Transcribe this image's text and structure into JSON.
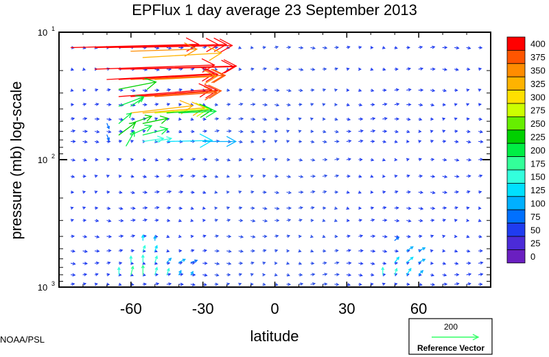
{
  "chart_data": {
    "type": "vector_field",
    "title": "EPFlux  1 day average  23 September 2013",
    "xlabel": "latitude",
    "ylabel": "pressure (mb)  log-scale",
    "xlim": [
      -90,
      90
    ],
    "ylim": [
      1000,
      10
    ],
    "yscale": "log",
    "x_ticks": [
      -60,
      -30,
      0,
      30,
      60
    ],
    "x_tick_labels": [
      "-60",
      "-30",
      "0",
      "30",
      "60"
    ],
    "y_ticks": [
      10,
      100,
      1000
    ],
    "y_tick_labels": [
      {
        "base": "10",
        "exp": "1"
      },
      {
        "base": "10",
        "exp": "2"
      },
      {
        "base": "10",
        "exp": "3"
      }
    ],
    "colorbar": {
      "levels": [
        "400",
        "375",
        "350",
        "325",
        "300",
        "275",
        "250",
        "225",
        "200",
        "175",
        "150",
        "125",
        "100",
        "75",
        "50",
        "25",
        "0"
      ],
      "colors": [
        "#ff0000",
        "#ff5500",
        "#ff8c00",
        "#ffb300",
        "#ffe000",
        "#ccff00",
        "#66ee00",
        "#00d000",
        "#00ee44",
        "#33ff99",
        "#33ffdd",
        "#00e0ff",
        "#00b0ff",
        "#0070ff",
        "#1f3cf0",
        "#4b2bd8",
        "#6a1fc0"
      ]
    },
    "reference_vector": {
      "magnitude": "200",
      "label": "Reference Vector"
    },
    "credit": "NOAA/PSL",
    "strong_vectors_note": "magnitudes 0-400",
    "strong_vectors": [
      {
        "lat": -85,
        "p": 13.2,
        "u": 62,
        "v": 1.6,
        "m": 420
      },
      {
        "lat": -75,
        "p": 13.2,
        "u": 60,
        "v": 1.4,
        "m": 410
      },
      {
        "lat": -70,
        "p": 13.2,
        "u": 58,
        "v": 1.5,
        "m": 405
      },
      {
        "lat": -65,
        "p": 13.2,
        "u": 55,
        "v": 1.0,
        "m": 400
      },
      {
        "lat": -60,
        "p": 14.1,
        "u": 32,
        "v": 1.0,
        "m": 350
      },
      {
        "lat": -75,
        "p": 19.5,
        "u": 58,
        "v": 2.0,
        "m": 410
      },
      {
        "lat": -65,
        "p": 19.5,
        "u": 57,
        "v": 1.5,
        "m": 410
      },
      {
        "lat": -60,
        "p": 19.5,
        "u": 50,
        "v": 1.2,
        "m": 400
      },
      {
        "lat": -55,
        "p": 15.8,
        "u": 38,
        "v": 2.2,
        "m": 330
      },
      {
        "lat": -70,
        "p": 23.5,
        "u": 52,
        "v": 2.8,
        "m": 405
      },
      {
        "lat": -65,
        "p": 23.5,
        "u": 48,
        "v": 2.5,
        "m": 400
      },
      {
        "lat": -60,
        "p": 23.5,
        "u": 45,
        "v": 2.0,
        "m": 395
      },
      {
        "lat": -55,
        "p": 23.5,
        "u": 40,
        "v": 2.0,
        "m": 380
      },
      {
        "lat": -50,
        "p": 23.5,
        "u": 30,
        "v": 1.5,
        "m": 360
      },
      {
        "lat": -65,
        "p": 28.0,
        "u": 18,
        "v": 3.5,
        "m": 230
      },
      {
        "lat": -65,
        "p": 32.0,
        "u": 45,
        "v": 3.5,
        "m": 405
      },
      {
        "lat": -60,
        "p": 32.0,
        "u": 42,
        "v": 3.0,
        "m": 400
      },
      {
        "lat": -55,
        "p": 32.0,
        "u": 38,
        "v": 2.8,
        "m": 395
      },
      {
        "lat": -50,
        "p": 32.0,
        "u": 30,
        "v": 2.0,
        "m": 380
      },
      {
        "lat": -65,
        "p": 38.0,
        "u": 12,
        "v": 4.5,
        "m": 220
      },
      {
        "lat": -60,
        "p": 38.0,
        "u": 6,
        "v": 4.0,
        "m": 220
      },
      {
        "lat": -60,
        "p": 43.0,
        "u": 30,
        "v": 3.5,
        "m": 340
      },
      {
        "lat": -55,
        "p": 43.0,
        "u": 30,
        "v": 2.5,
        "m": 330
      },
      {
        "lat": -50,
        "p": 43.0,
        "u": 26,
        "v": 2.0,
        "m": 290
      },
      {
        "lat": -45,
        "p": 43.0,
        "u": 22,
        "v": 1.5,
        "m": 230
      },
      {
        "lat": -40,
        "p": 43.0,
        "u": 18,
        "v": 0.8,
        "m": 200
      },
      {
        "lat": -65,
        "p": 52.0,
        "u": 6,
        "v": 5.0,
        "m": 210
      },
      {
        "lat": -60,
        "p": 52.0,
        "u": 10,
        "v": 3.5,
        "m": 230
      },
      {
        "lat": -55,
        "p": 52.0,
        "u": 12,
        "v": 2.5,
        "m": 230
      },
      {
        "lat": -65,
        "p": 64.0,
        "u": 8,
        "v": 6.0,
        "m": 230
      },
      {
        "lat": -60,
        "p": 64.0,
        "u": 10,
        "v": 4.5,
        "m": 215
      },
      {
        "lat": -55,
        "p": 64.0,
        "u": 12,
        "v": 3.0,
        "m": 210
      },
      {
        "lat": -55,
        "p": 72.0,
        "u": 10,
        "v": 1.5,
        "m": 160
      },
      {
        "lat": -50,
        "p": 72.0,
        "u": 8,
        "v": 1.5,
        "m": 150
      },
      {
        "lat": -45,
        "p": 72.0,
        "u": 22,
        "v": 0.5,
        "m": 130
      },
      {
        "lat": -30,
        "p": 72.0,
        "u": 16,
        "v": 0.0,
        "m": 110
      },
      {
        "lat": -62,
        "p": 78.0,
        "u": 4,
        "v": 7.0,
        "m": 200
      },
      {
        "lat": -70,
        "p": 52.0,
        "u": 1,
        "v": -2.5,
        "m": 90
      },
      {
        "lat": -70,
        "p": 64.0,
        "u": 1,
        "v": -2.5,
        "m": 90
      }
    ],
    "lower_vectors": [
      {
        "lat": -65,
        "p": 800,
        "u": 0,
        "v": 3.5,
        "m": 170
      },
      {
        "lat": -60,
        "p": 800,
        "u": 1,
        "v": 4.0,
        "m": 180
      },
      {
        "lat": -55,
        "p": 800,
        "u": 0,
        "v": 4.5,
        "m": 180
      },
      {
        "lat": -50,
        "p": 800,
        "u": 1,
        "v": 3.5,
        "m": 160
      },
      {
        "lat": -45,
        "p": 800,
        "u": 1,
        "v": 3.0,
        "m": 150
      },
      {
        "lat": -40,
        "p": 800,
        "u": 1,
        "v": 2.0,
        "m": 120
      },
      {
        "lat": -35,
        "p": 800,
        "u": 1,
        "v": 1.5,
        "m": 100
      },
      {
        "lat": -60,
        "p": 640,
        "u": 0,
        "v": 3.0,
        "m": 160
      },
      {
        "lat": -55,
        "p": 640,
        "u": 0,
        "v": 3.5,
        "m": 170
      },
      {
        "lat": -50,
        "p": 640,
        "u": 1,
        "v": 3.0,
        "m": 150
      },
      {
        "lat": -45,
        "p": 640,
        "u": 2,
        "v": 2.0,
        "m": 120
      },
      {
        "lat": -40,
        "p": 640,
        "u": 3,
        "v": 1.5,
        "m": 110
      },
      {
        "lat": -35,
        "p": 640,
        "u": 3,
        "v": 1.0,
        "m": 90
      },
      {
        "lat": -55,
        "p": 520,
        "u": 1,
        "v": 2.5,
        "m": 150
      },
      {
        "lat": -50,
        "p": 520,
        "u": 1,
        "v": 2.5,
        "m": 140
      },
      {
        "lat": -55,
        "p": 430,
        "u": 0,
        "v": 2.5,
        "m": 140
      },
      {
        "lat": -50,
        "p": 430,
        "u": 0,
        "v": 2.0,
        "m": 120
      },
      {
        "lat": 45,
        "p": 800,
        "u": 0,
        "v": 3.5,
        "m": 160
      },
      {
        "lat": 50,
        "p": 800,
        "u": 1,
        "v": 3.0,
        "m": 150
      },
      {
        "lat": 55,
        "p": 800,
        "u": 2,
        "v": 3.0,
        "m": 140
      },
      {
        "lat": 60,
        "p": 800,
        "u": 2,
        "v": 2.0,
        "m": 120
      },
      {
        "lat": 50,
        "p": 640,
        "u": 2,
        "v": 2.5,
        "m": 130
      },
      {
        "lat": 55,
        "p": 640,
        "u": 3,
        "v": 2.5,
        "m": 130
      },
      {
        "lat": 60,
        "p": 640,
        "u": 3,
        "v": 1.5,
        "m": 110
      },
      {
        "lat": 55,
        "p": 520,
        "u": 3,
        "v": 2.0,
        "m": 110
      },
      {
        "lat": 60,
        "p": 520,
        "u": 3,
        "v": 1.5,
        "m": 100
      },
      {
        "lat": 50,
        "p": 430,
        "u": 2,
        "v": 1.5,
        "m": 90
      }
    ]
  }
}
